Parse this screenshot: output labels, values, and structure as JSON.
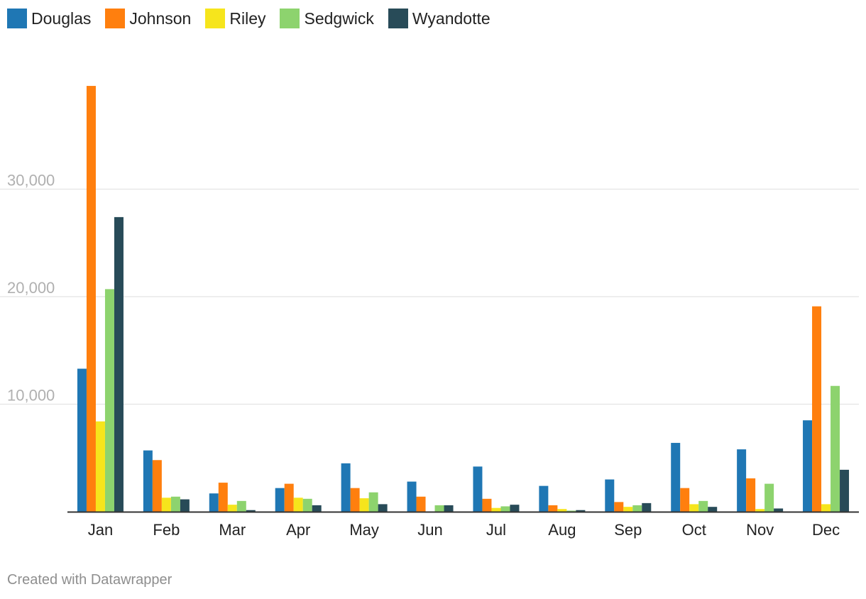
{
  "chart_data": {
    "type": "bar",
    "title": "",
    "xlabel": "",
    "ylabel": "",
    "categories": [
      "Jan",
      "Feb",
      "Mar",
      "Apr",
      "May",
      "Jun",
      "Jul",
      "Aug",
      "Sep",
      "Oct",
      "Nov",
      "Dec"
    ],
    "series": [
      {
        "name": "Douglas",
        "color": "#1f77b4",
        "values": [
          13300,
          5700,
          1700,
          2200,
          4500,
          2800,
          4200,
          2400,
          3000,
          6400,
          5800,
          8500
        ]
      },
      {
        "name": "Johnson",
        "color": "#ff7f0e",
        "values": [
          39600,
          4800,
          2700,
          2600,
          2200,
          1400,
          1200,
          600,
          900,
          2200,
          3100,
          19100
        ]
      },
      {
        "name": "Riley",
        "color": "#f6e51c",
        "values": [
          8400,
          1300,
          650,
          1300,
          1250,
          0,
          350,
          250,
          450,
          700,
          250,
          700
        ]
      },
      {
        "name": "Sedgwick",
        "color": "#8dd36e",
        "values": [
          20700,
          1400,
          1000,
          1200,
          1800,
          600,
          500,
          100,
          600,
          1000,
          2600,
          11700
        ]
      },
      {
        "name": "Wyandotte",
        "color": "#284b58",
        "values": [
          27400,
          1150,
          150,
          600,
          700,
          600,
          650,
          150,
          800,
          450,
          300,
          3900
        ]
      }
    ],
    "yticks": [
      10000,
      20000,
      30000
    ],
    "ytick_labels": [
      "10,000",
      "20,000",
      "30,000"
    ],
    "ylim": [
      0,
      40000
    ],
    "grid": true,
    "legend_position": "top-left"
  },
  "footer": {
    "credit": "Created with Datawrapper"
  }
}
